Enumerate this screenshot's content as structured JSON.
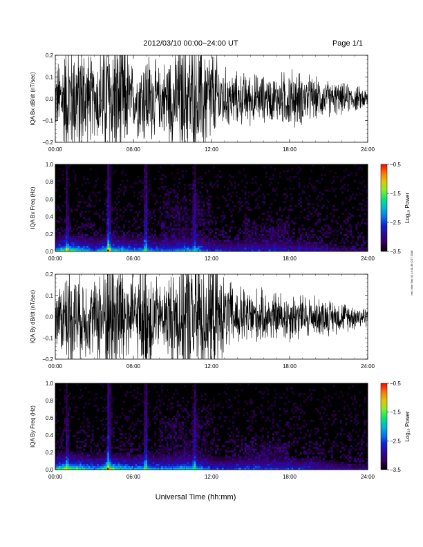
{
  "header": {
    "title": "2012/03/10   00:00−24:00 UT",
    "page": "Page 1/1"
  },
  "side_stamp": "rm1 Mon Sep 03 14:11:38 CST 2018",
  "footer": {
    "xlabel": "Universal Time (hh:mm)"
  },
  "chart_data": [
    {
      "type": "line",
      "name": "bx-waveform",
      "ylabel": "IQA Bx dB/dt (nT/sec)",
      "xlim": [
        0,
        24
      ],
      "ylim": [
        -0.2,
        0.2
      ],
      "yticks": [
        "0.2",
        "0.1",
        "0.0",
        "−0.1",
        "−0.2"
      ],
      "xticks": [
        "00:00",
        "06:00",
        "12:00",
        "18:00",
        "24:00"
      ],
      "series": [
        {
          "x": [
            0,
            1,
            2,
            3,
            4,
            5,
            6,
            7,
            8,
            9,
            10,
            11,
            12,
            13,
            14,
            15,
            16,
            17,
            18,
            19,
            20,
            21,
            22,
            23,
            24
          ],
          "amplitude": [
            0.12,
            0.25,
            0.25,
            0.14,
            0.28,
            0.28,
            0.12,
            0.2,
            0.12,
            0.2,
            0.25,
            0.25,
            0.2,
            0.12,
            0.1,
            0.1,
            0.09,
            0.09,
            0.12,
            0.1,
            0.08,
            0.07,
            0.06,
            0.05,
            0.04
          ]
        }
      ],
      "color": "#000000"
    },
    {
      "type": "heatmap",
      "name": "bx-spectrogram",
      "ylabel": "IQA Bx Freq (Hz)",
      "xlim": [
        0,
        24
      ],
      "ylim": [
        0,
        1.0
      ],
      "yticks": [
        "1.0",
        "0.8",
        "0.6",
        "0.4",
        "0.2",
        "0.0"
      ],
      "xticks": [
        "00:00",
        "06:00",
        "12:00",
        "18:00",
        "24:00"
      ],
      "colorbar": {
        "label": "Log₁₀ Power",
        "ticks": [
          "−0.5",
          "−1.5",
          "−2.5",
          "−3.5"
        ],
        "range": [
          -3.5,
          -0.5
        ]
      },
      "bands": [
        {
          "t": 4.1,
          "level": 0.7
        },
        {
          "t": 6.95,
          "level": 0.55
        },
        {
          "t": 0.9,
          "level": 0.35
        },
        {
          "t": 10.7,
          "level": 0.35
        }
      ],
      "background_level": 0.02,
      "low_freq_activity": [
        0.55,
        0.7,
        0.6,
        0.4,
        0.65,
        0.55,
        0.45,
        0.5,
        0.4,
        0.45,
        0.5,
        0.45,
        0.3,
        0.25,
        0.3,
        0.3,
        0.3,
        0.3,
        0.25,
        0.25,
        0.2,
        0.15,
        0.12,
        0.1,
        0.1
      ]
    },
    {
      "type": "line",
      "name": "by-waveform",
      "ylabel": "IQA By dB/dt (nT/sec)",
      "xlim": [
        0,
        24
      ],
      "ylim": [
        -0.2,
        0.2
      ],
      "yticks": [
        "0.2",
        "0.1",
        "0.0",
        "−0.1",
        "−0.2"
      ],
      "xticks": [
        "00:00",
        "06:00",
        "12:00",
        "18:00",
        "24:00"
      ],
      "series": [
        {
          "x": [
            0,
            1,
            2,
            3,
            4,
            5,
            6,
            7,
            8,
            9,
            10,
            11,
            12,
            13,
            14,
            15,
            16,
            17,
            18,
            19,
            20,
            21,
            22,
            23,
            24
          ],
          "amplitude": [
            0.1,
            0.2,
            0.18,
            0.14,
            0.3,
            0.3,
            0.14,
            0.28,
            0.12,
            0.2,
            0.3,
            0.3,
            0.25,
            0.15,
            0.12,
            0.12,
            0.1,
            0.1,
            0.1,
            0.09,
            0.08,
            0.07,
            0.06,
            0.05,
            0.04
          ]
        }
      ],
      "color": "#000000"
    },
    {
      "type": "heatmap",
      "name": "by-spectrogram",
      "ylabel": "IQA By Freq (Hz)",
      "xlim": [
        0,
        24
      ],
      "ylim": [
        0,
        1.0
      ],
      "yticks": [
        "1.0",
        "0.8",
        "0.6",
        "0.4",
        "0.2",
        "0.0"
      ],
      "xticks": [
        "00:00",
        "06:00",
        "12:00",
        "18:00",
        "24:00"
      ],
      "colorbar": {
        "label": "Log₁₀ Power",
        "ticks": [
          "−0.5",
          "−1.5",
          "−2.5",
          "−3.5"
        ],
        "range": [
          -3.5,
          -0.5
        ]
      },
      "bands": [
        {
          "t": 4.1,
          "level": 0.7
        },
        {
          "t": 6.95,
          "level": 0.55
        },
        {
          "t": 0.9,
          "level": 0.35
        },
        {
          "t": 10.7,
          "level": 0.35
        }
      ],
      "background_level": 0.02,
      "low_freq_activity": [
        0.6,
        0.75,
        0.65,
        0.45,
        0.7,
        0.6,
        0.5,
        0.55,
        0.45,
        0.5,
        0.6,
        0.5,
        0.35,
        0.3,
        0.35,
        0.35,
        0.35,
        0.35,
        0.3,
        0.3,
        0.25,
        0.2,
        0.15,
        0.12,
        0.12
      ]
    }
  ]
}
